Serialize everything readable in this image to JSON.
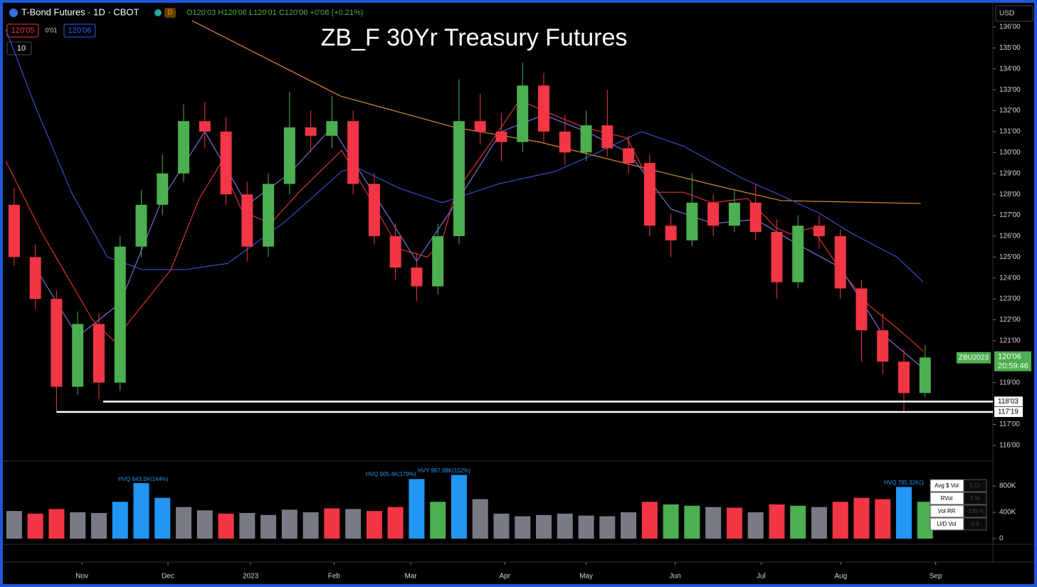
{
  "ui": {
    "symbol": "T-Bond Futures · 1D · CBOT",
    "badge": "D",
    "ohlc": "O120'03 H120'06 L120'01 C120'06 +0'08 (+0.21%)",
    "bid": "120'05",
    "spread": "0'01",
    "ask": "120'06",
    "collapse": "10",
    "currency": "USD"
  },
  "chart_data": [
    {
      "type": "candlestick",
      "title": "ZB_F 30Yr Treasury Futures",
      "up_color": "#4caf50",
      "down_color": "#f23645",
      "x": [
        2,
        7,
        12,
        17,
        22,
        27,
        32,
        37,
        42,
        47,
        52,
        57,
        62,
        67,
        72,
        77,
        82,
        87,
        92,
        97,
        102,
        107,
        112,
        117,
        122,
        127,
        132,
        137,
        142,
        147,
        152,
        157,
        162,
        167,
        172,
        177,
        182,
        187,
        192,
        197,
        202,
        207,
        212,
        217
      ],
      "open": [
        127.5,
        125,
        123,
        118.8,
        121.8,
        119,
        125.5,
        127.5,
        129,
        131.5,
        131,
        128,
        125.5,
        128.5,
        131.2,
        130.8,
        131.5,
        128.5,
        126,
        124.5,
        123.6,
        126,
        131.5,
        131,
        130.5,
        133.2,
        131,
        130,
        131.3,
        130.2,
        129.5,
        126.5,
        125.8,
        127.6,
        126.5,
        127.6,
        126.2,
        123.8,
        126.5,
        126,
        123.5,
        121.5,
        120,
        118.5
      ],
      "high": [
        128.3,
        125.6,
        123.4,
        122.4,
        122.3,
        126,
        128.2,
        129.9,
        132.3,
        132.4,
        131.7,
        128.6,
        129,
        132.9,
        132,
        132.7,
        132,
        129,
        126.6,
        125.2,
        126.6,
        133.5,
        132.8,
        131.9,
        134.3,
        133.8,
        131.8,
        132,
        133,
        130.8,
        129.9,
        127.1,
        129,
        128,
        128.2,
        128.5,
        126.8,
        127,
        127,
        126.3,
        123.9,
        122.3,
        120.6,
        120.8
      ],
      "low": [
        124.6,
        122.5,
        117.6,
        118.4,
        118.2,
        118.6,
        125,
        127,
        128.6,
        130.2,
        127.5,
        124.8,
        125,
        128,
        130,
        130.2,
        128,
        125.6,
        123.9,
        122.9,
        123.2,
        125.6,
        130.4,
        129.6,
        130,
        130.5,
        129.4,
        129.6,
        129.8,
        129,
        126,
        125,
        125.5,
        126,
        126.2,
        125.8,
        123,
        123.5,
        125.4,
        123,
        120,
        119.4,
        117.6,
        118.3
      ],
      "close": [
        125,
        123,
        118.8,
        121.8,
        119,
        125.5,
        127.5,
        129,
        131.5,
        131,
        128,
        125.5,
        128.5,
        131.2,
        130.8,
        131.5,
        128.5,
        126,
        124.5,
        123.6,
        126,
        131.5,
        131,
        130.5,
        133.2,
        131,
        130,
        131.3,
        130.2,
        129.5,
        126.5,
        125.8,
        127.6,
        126.5,
        127.6,
        126.2,
        123.8,
        126.5,
        126,
        123.5,
        121.5,
        120,
        118.5,
        120.2
      ],
      "overlays": [
        {
          "color": "#e08a2c",
          "x": [
            44,
            79,
            106,
            126,
            150,
            167,
            183,
            216
          ],
          "values": [
            136.3,
            132.7,
            131.2,
            130.5,
            129.3,
            128.45,
            127.7,
            127.56
          ]
        },
        {
          "color": "#3550c8",
          "x": [
            0,
            7,
            15.5,
            24,
            32.3,
            42.4,
            52.4,
            66,
            79.3,
            82.7,
            92.8,
            103,
            116.3,
            129.8,
            139.8,
            150,
            160,
            173.5,
            183.5,
            192,
            200,
            210.4,
            216.6
          ],
          "values": [
            135.9,
            132.2,
            128.1,
            125,
            124.4,
            124.4,
            124.7,
            126.7,
            129.1,
            129.3,
            128.3,
            127.6,
            128.5,
            129.1,
            130,
            131,
            130.3,
            128.8,
            127.9,
            127.1,
            126.1,
            125,
            123.8
          ]
        },
        {
          "color": "#d8342f",
          "x": [
            0,
            8.7,
            20.5,
            25.5,
            32.3,
            39,
            45.7,
            50.8,
            55.8,
            62.5,
            69.2,
            79.3,
            86,
            92.8,
            99.5,
            102.9,
            106.2,
            114.6,
            121.3,
            128.1,
            136.5,
            146.6,
            153.3,
            160,
            166.7,
            175.1,
            181.8,
            185.2,
            190.3,
            197,
            203.7,
            210.4,
            216.6
          ],
          "values": [
            129.6,
            126.1,
            122,
            121,
            122.7,
            124.4,
            127.8,
            129.5,
            127.2,
            126.6,
            128.1,
            130.1,
            127.8,
            125.4,
            125,
            125.7,
            128.1,
            130.5,
            132.5,
            131.9,
            131.2,
            130.7,
            128.1,
            128.1,
            127.6,
            127.8,
            126.4,
            126.1,
            126.4,
            124.4,
            122.7,
            121.6,
            120.5
          ]
        },
        {
          "color": "#7b6fd6",
          "x": [
            7,
            17,
            27,
            37,
            47,
            57,
            67,
            77,
            87,
            97,
            107,
            117,
            127,
            137,
            147,
            157,
            167,
            177,
            187,
            197,
            207,
            217
          ],
          "values": [
            124.5,
            121.2,
            122.8,
            127.8,
            131,
            127.5,
            129,
            131.2,
            128,
            124.8,
            127.8,
            131,
            131.8,
            131,
            130,
            127.3,
            126.6,
            126.8,
            125.6,
            124.5,
            121.3,
            119.6
          ]
        }
      ],
      "levels": [
        {
          "value": 118.09375,
          "label": "118'03",
          "from": 23
        },
        {
          "value": 117.59375,
          "label": "117'19",
          "from": 12
        }
      ],
      "last": {
        "value": 120.1875,
        "label": "120'06",
        "countdown": "20:59:46",
        "contract": "ZBU2023"
      },
      "xlim": [
        0,
        233
      ],
      "ylim": [
        115.35,
        136.27
      ],
      "yticks": [
        {
          "value": 116,
          "label": "116'00"
        },
        {
          "value": 117,
          "label": "117'00"
        },
        {
          "value": 119,
          "label": "119'00"
        },
        {
          "value": 121,
          "label": "121'00"
        },
        {
          "value": 122,
          "label": "122'00"
        },
        {
          "value": 123,
          "label": "123'00"
        },
        {
          "value": 124,
          "label": "124'00"
        },
        {
          "value": 125,
          "label": "125'00"
        },
        {
          "value": 126,
          "label": "126'00"
        },
        {
          "value": 127,
          "label": "127'00"
        },
        {
          "value": 128,
          "label": "128'00"
        },
        {
          "value": 129,
          "label": "129'00"
        },
        {
          "value": 130,
          "label": "130'00"
        },
        {
          "value": 131,
          "label": "131'00"
        },
        {
          "value": 132,
          "label": "132'00"
        },
        {
          "value": 133,
          "label": "133'00"
        },
        {
          "value": 134,
          "label": "134'00"
        },
        {
          "value": 135,
          "label": "135'00"
        },
        {
          "value": 136,
          "label": "136'00"
        }
      ],
      "xticks": [
        {
          "value": 18,
          "label": "Nov"
        },
        {
          "value": 38.3,
          "label": "Dec"
        },
        {
          "value": 57.8,
          "label": "2023"
        },
        {
          "value": 77.5,
          "label": "Feb"
        },
        {
          "value": 95.6,
          "label": "Mar"
        },
        {
          "value": 117.8,
          "label": "Apr"
        },
        {
          "value": 137,
          "label": "May"
        },
        {
          "value": 158,
          "label": "Jun"
        },
        {
          "value": 178.3,
          "label": "Jul"
        },
        {
          "value": 197.1,
          "label": "Aug"
        },
        {
          "value": 219.5,
          "label": "Sep"
        }
      ]
    },
    {
      "type": "bar",
      "x": [
        2,
        7,
        12,
        17,
        22,
        27,
        32,
        37,
        42,
        47,
        52,
        57,
        62,
        67,
        72,
        77,
        82,
        87,
        92,
        97,
        102,
        107,
        112,
        117,
        122,
        127,
        132,
        137,
        142,
        147,
        152,
        157,
        162,
        167,
        172,
        177,
        182,
        187,
        192,
        197,
        202,
        207,
        212,
        217
      ],
      "values": [
        420000,
        380000,
        450000,
        400000,
        390000,
        560000,
        843200,
        620000,
        480000,
        430000,
        380000,
        390000,
        360000,
        440000,
        400000,
        460000,
        450000,
        420000,
        480000,
        905400,
        560000,
        967880,
        600000,
        380000,
        340000,
        360000,
        380000,
        350000,
        340000,
        400000,
        560000,
        520000,
        500000,
        480000,
        470000,
        400000,
        520000,
        500000,
        480000,
        560000,
        620000,
        600000,
        785320,
        560000
      ],
      "colors": [
        "#787b86",
        "#f23645",
        "#f23645",
        "#787b86",
        "#787b86",
        "#2196f3",
        "#2196f3",
        "#2196f3",
        "#787b86",
        "#787b86",
        "#f23645",
        "#787b86",
        "#787b86",
        "#787b86",
        "#787b86",
        "#f23645",
        "#787b86",
        "#f23645",
        "#f23645",
        "#2196f3",
        "#4caf50",
        "#2196f3",
        "#787b86",
        "#787b86",
        "#787b86",
        "#787b86",
        "#787b86",
        "#787b86",
        "#787b86",
        "#787b86",
        "#f23645",
        "#4caf50",
        "#4caf50",
        "#787b86",
        "#f23645",
        "#787b86",
        "#f23645",
        "#4caf50",
        "#787b86",
        "#f23645",
        "#f23645",
        "#f23645",
        "#2196f3",
        "#4caf50"
      ],
      "annotations": [
        "HVQ 843.2K(144%)",
        "HVQ 905.4K(179%)",
        "HVY 967.88K(152%)",
        "HVQ 785.32K(1"
      ],
      "xlim": [
        0,
        233
      ],
      "ylim": [
        -86000,
        1157000
      ],
      "yticks": [
        {
          "value": 0,
          "label": "0"
        },
        {
          "value": 400000,
          "label": "400K"
        },
        {
          "value": 800000,
          "label": "800K"
        }
      ],
      "table": [
        [
          "Avg $ Vol",
          "5 Cr"
        ],
        [
          "RVol",
          "0 %"
        ],
        [
          "Vol RR",
          "-100 %"
        ],
        [
          "U/D Vol",
          "0.9"
        ]
      ]
    }
  ]
}
